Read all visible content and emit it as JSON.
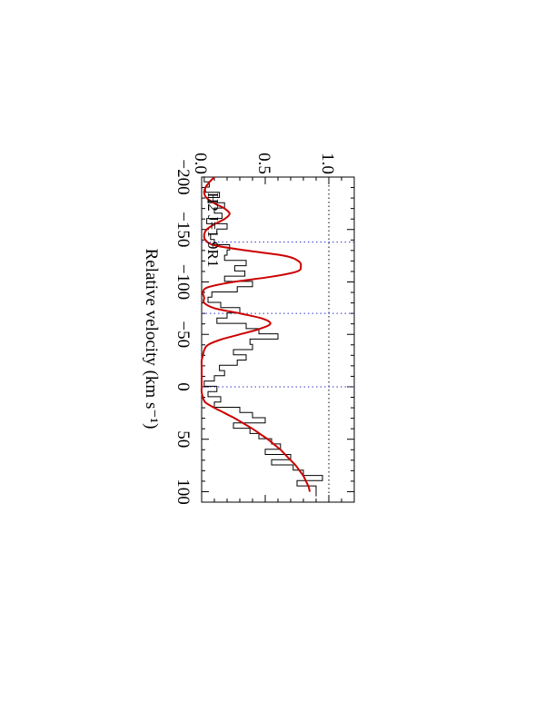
{
  "chart_data": {
    "type": "line",
    "orientation": "rotated-90-clockwise",
    "annotation": "H2 J=1 9R1",
    "xlabel": "Relative velocity (km s⁻¹)",
    "ylabel": "",
    "xlim": [
      -200,
      110
    ],
    "ylim": [
      0.0,
      1.2
    ],
    "x_ticks": [
      "−200",
      "−150",
      "−100",
      "−50",
      "0",
      "50",
      "100"
    ],
    "y_ticks": [
      "0.0",
      "0.5",
      "1.0"
    ],
    "component_velocities": [
      -138,
      -70,
      0
    ],
    "reference_levels": [
      0.0,
      1.0
    ],
    "colors": {
      "data": "#000000",
      "model": "#cc0000",
      "reference": "#3333cc",
      "axes": "#000000"
    },
    "series": [
      {
        "kind": "data-histogram",
        "x": [
          -198,
          -193,
          -188,
          -183,
          -178,
          -173,
          -168,
          -163,
          -158,
          -153,
          -148,
          -143,
          -138,
          -133,
          -128,
          -123,
          -118,
          -113,
          -108,
          -103,
          -98,
          -93,
          -88,
          -83,
          -78,
          -73,
          -68,
          -63,
          -58,
          -53,
          -48,
          -43,
          -38,
          -33,
          -28,
          -23,
          -18,
          -13,
          -8,
          -3,
          2,
          7,
          12,
          17,
          22,
          27,
          32,
          37,
          42,
          47,
          52,
          57,
          62,
          67,
          72,
          77,
          82,
          87,
          92,
          97,
          102
        ],
        "y": [
          0.02,
          0.06,
          0.03,
          0.14,
          0.05,
          0.18,
          0.1,
          0.16,
          0.04,
          0.2,
          0.12,
          0.07,
          0.1,
          0.22,
          0.2,
          0.18,
          0.35,
          0.26,
          0.34,
          0.18,
          0.4,
          0.28,
          0.08,
          0.05,
          0.15,
          0.3,
          0.2,
          0.12,
          0.35,
          0.45,
          0.6,
          0.38,
          0.4,
          0.25,
          0.35,
          0.28,
          0.14,
          0.18,
          0.1,
          0.02,
          0.12,
          0.05,
          0.15,
          0.1,
          0.3,
          0.4,
          0.5,
          0.25,
          0.38,
          0.45,
          0.55,
          0.62,
          0.5,
          0.7,
          0.55,
          0.72,
          0.8,
          0.95,
          0.75,
          0.9,
          0.9
        ]
      },
      {
        "kind": "model-fit",
        "x": [
          -200,
          -195,
          -190,
          -185,
          -180,
          -175,
          -170,
          -165,
          -160,
          -155,
          -150,
          -145,
          -140,
          -135,
          -130,
          -125,
          -120,
          -115,
          -110,
          -105,
          -100,
          -95,
          -90,
          -85,
          -80,
          -75,
          -70,
          -65,
          -60,
          -55,
          -50,
          -45,
          -40,
          -35,
          -30,
          -25,
          -20,
          -15,
          -10,
          -5,
          0,
          5,
          10,
          15,
          20,
          25,
          30,
          35,
          40,
          45,
          50,
          55,
          60,
          65,
          70,
          75,
          80,
          85,
          90,
          95,
          100
        ],
        "y": [
          0.1,
          0.06,
          0.03,
          0.02,
          0.04,
          0.1,
          0.18,
          0.22,
          0.18,
          0.1,
          0.04,
          0.02,
          0.03,
          0.1,
          0.35,
          0.65,
          0.76,
          0.78,
          0.75,
          0.55,
          0.25,
          0.05,
          0.01,
          0.02,
          0.02,
          0.1,
          0.3,
          0.48,
          0.54,
          0.45,
          0.3,
          0.15,
          0.05,
          0.02,
          0.01,
          0.0,
          0.0,
          0.0,
          0.0,
          0.0,
          0.0,
          0.0,
          0.01,
          0.03,
          0.1,
          0.18,
          0.26,
          0.33,
          0.4,
          0.46,
          0.52,
          0.57,
          0.62,
          0.66,
          0.7,
          0.74,
          0.77,
          0.8,
          0.82,
          0.84,
          0.85
        ]
      }
    ]
  }
}
